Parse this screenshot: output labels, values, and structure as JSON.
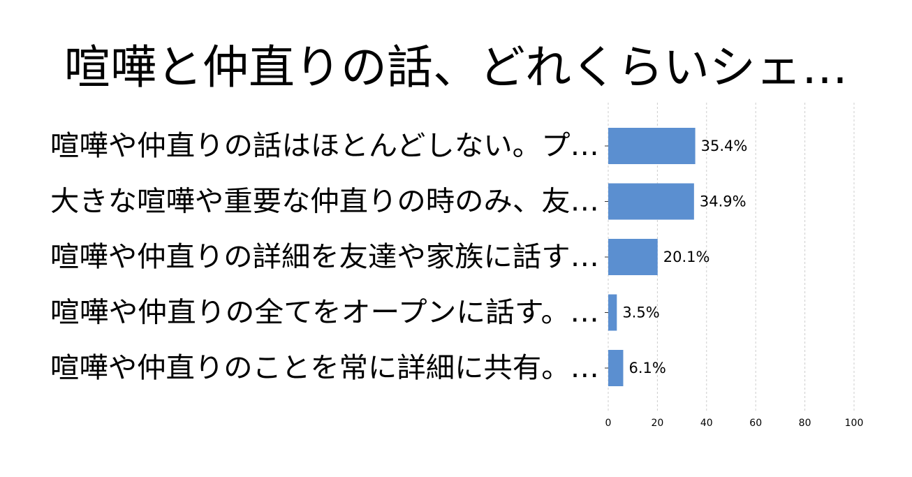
{
  "chart_data": {
    "type": "bar",
    "orientation": "horizontal",
    "title": "喧嘩と仲直りの話、どれくらいシェ…",
    "categories": [
      "喧嘩や仲直りの話はほとんどしない。プ…",
      "大きな喧嘩や重要な仲直りの時のみ、友…",
      "喧嘩や仲直りの詳細を友達や家族に話す…",
      "喧嘩や仲直りの全てをオープンに話す。…",
      "喧嘩や仲直りのことを常に詳細に共有。…"
    ],
    "values": [
      35.4,
      34.9,
      20.1,
      3.5,
      6.1
    ],
    "value_labels": [
      "35.4%",
      "34.9%",
      "20.1%",
      "3.5%",
      "6.1%"
    ],
    "xlim": [
      0,
      100
    ],
    "xticks": [
      "0",
      "20",
      "40",
      "60",
      "80",
      "100"
    ],
    "xlabel": "",
    "ylabel": "",
    "grid": true,
    "bar_color": "#5b8fd0"
  }
}
